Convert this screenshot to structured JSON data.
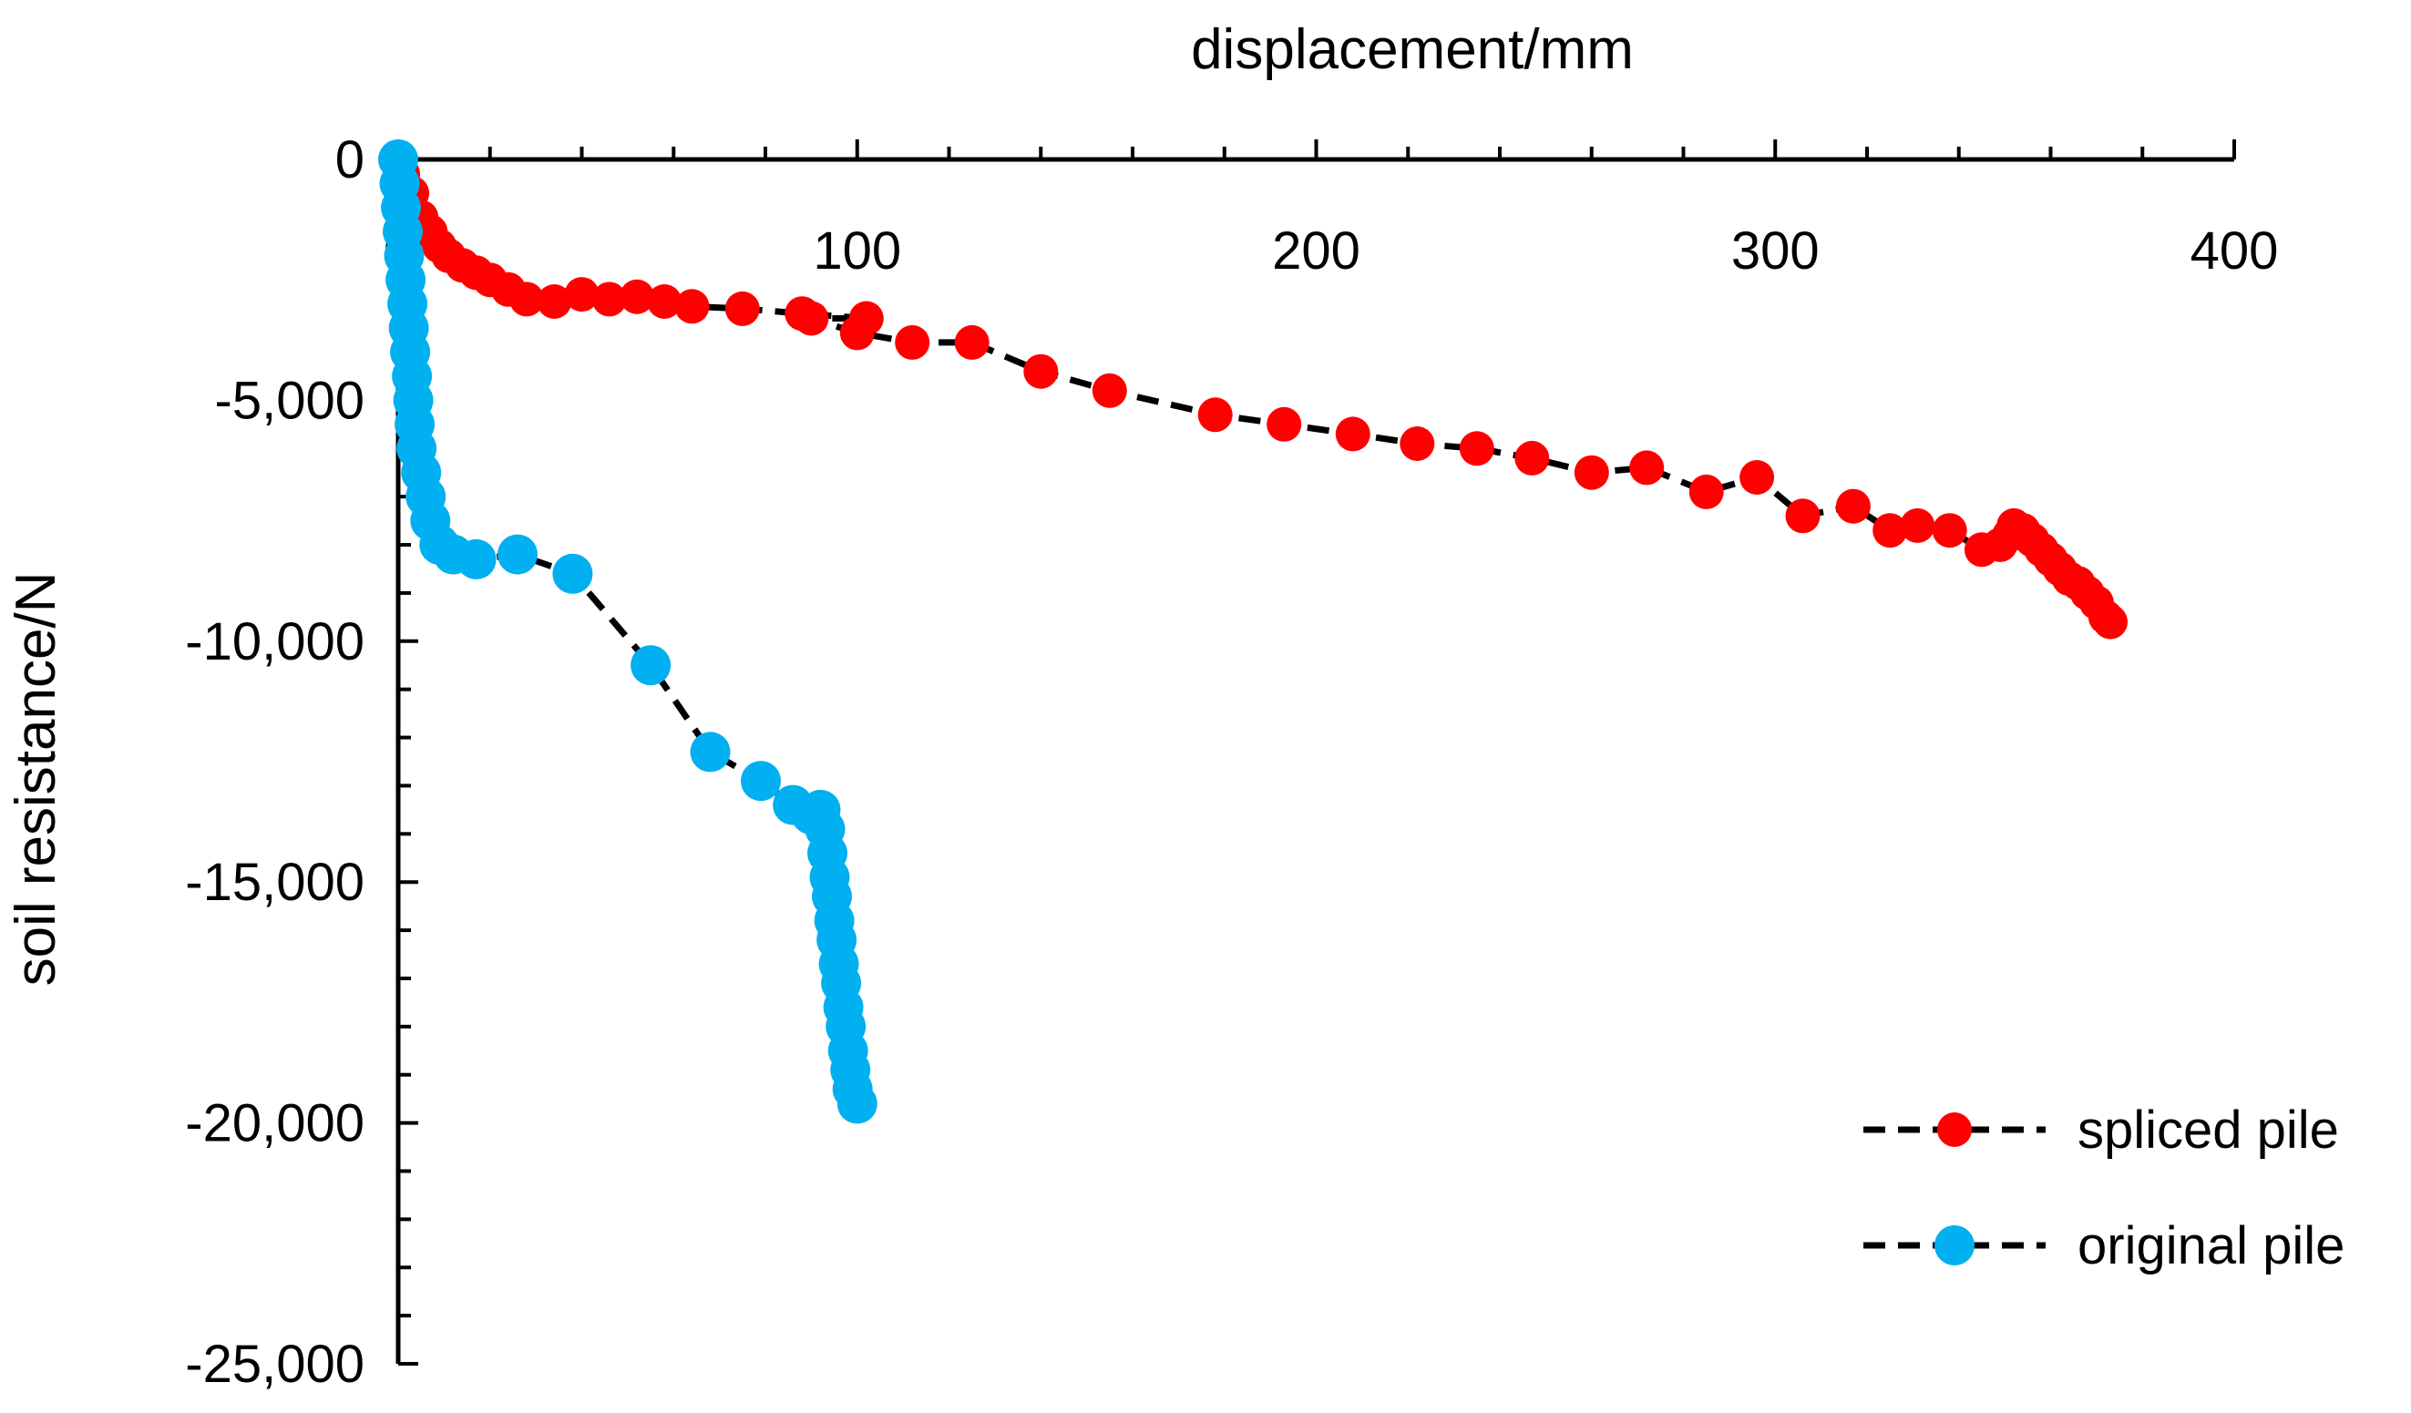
{
  "chart_data": {
    "type": "scatter",
    "title": "",
    "xlabel": "displacement/mm",
    "ylabel": "soil resistance/N",
    "xlim": [
      0,
      400
    ],
    "ylim": [
      -25000,
      0
    ],
    "x_ticks": [
      0,
      100,
      200,
      300,
      400
    ],
    "x_tick_labels": [
      "0",
      "100",
      "200",
      "300",
      "400"
    ],
    "y_ticks": [
      0,
      -5000,
      -10000,
      -15000,
      -20000,
      -25000
    ],
    "y_tick_labels": [
      "0",
      "-5,000",
      "-10,000",
      "-15,000",
      "-20,000",
      "-25,000"
    ],
    "legend_position": "bottom-right",
    "series": [
      {
        "name": "spliced pile",
        "color": "#ff0000",
        "line_color": "#000000",
        "line_style": "dashed",
        "points": [
          [
            0,
            0
          ],
          [
            1,
            -300
          ],
          [
            3,
            -700
          ],
          [
            5,
            -1200
          ],
          [
            7,
            -1500
          ],
          [
            9,
            -1800
          ],
          [
            11,
            -2000
          ],
          [
            14,
            -2200
          ],
          [
            17,
            -2350
          ],
          [
            20,
            -2500
          ],
          [
            24,
            -2700
          ],
          [
            28,
            -2900
          ],
          [
            34,
            -2950
          ],
          [
            40,
            -2800
          ],
          [
            46,
            -2900
          ],
          [
            52,
            -2850
          ],
          [
            58,
            -2950
          ],
          [
            64,
            -3050
          ],
          [
            75,
            -3100
          ],
          [
            88,
            -3200
          ],
          [
            102,
            -3300
          ],
          [
            90,
            -3300
          ],
          [
            100,
            -3600
          ],
          [
            112,
            -3800
          ],
          [
            125,
            -3800
          ],
          [
            140,
            -4400
          ],
          [
            155,
            -4800
          ],
          [
            178,
            -5300
          ],
          [
            193,
            -5500
          ],
          [
            208,
            -5700
          ],
          [
            222,
            -5900
          ],
          [
            235,
            -6000
          ],
          [
            247,
            -6200
          ],
          [
            260,
            -6500
          ],
          [
            272,
            -6400
          ],
          [
            285,
            -6900
          ],
          [
            296,
            -6600
          ],
          [
            306,
            -7400
          ],
          [
            317,
            -7200
          ],
          [
            325,
            -7700
          ],
          [
            331,
            -7600
          ],
          [
            338,
            -7700
          ],
          [
            345,
            -8100
          ],
          [
            349,
            -8000
          ],
          [
            351,
            -7800
          ],
          [
            352,
            -7600
          ],
          [
            354,
            -7700
          ],
          [
            356,
            -7900
          ],
          [
            358,
            -8100
          ],
          [
            360,
            -8300
          ],
          [
            362,
            -8500
          ],
          [
            364,
            -8700
          ],
          [
            366,
            -8800
          ],
          [
            368,
            -9000
          ],
          [
            370,
            -9200
          ],
          [
            372,
            -9500
          ],
          [
            373,
            -9600
          ]
        ]
      },
      {
        "name": "original pile",
        "color": "#00b0f0",
        "line_color": "#000000",
        "line_style": "dashed",
        "points": [
          [
            0,
            0
          ],
          [
            0.3,
            -500
          ],
          [
            0.6,
            -1000
          ],
          [
            1,
            -1500
          ],
          [
            1.3,
            -2000
          ],
          [
            1.6,
            -2500
          ],
          [
            2,
            -3000
          ],
          [
            2.3,
            -3500
          ],
          [
            2.6,
            -4000
          ],
          [
            3,
            -4500
          ],
          [
            3.3,
            -5000
          ],
          [
            3.6,
            -5500
          ],
          [
            4,
            -6000
          ],
          [
            5,
            -6500
          ],
          [
            6,
            -7000
          ],
          [
            7,
            -7500
          ],
          [
            9,
            -8000
          ],
          [
            12,
            -8200
          ],
          [
            17,
            -8300
          ],
          [
            26,
            -8200
          ],
          [
            38,
            -8600
          ],
          [
            55,
            -10500
          ],
          [
            68,
            -12300
          ],
          [
            79,
            -12900
          ],
          [
            86,
            -13400
          ],
          [
            90,
            -13600
          ],
          [
            92,
            -13500
          ],
          [
            93,
            -13900
          ],
          [
            93.5,
            -14400
          ],
          [
            94,
            -14900
          ],
          [
            94.5,
            -15300
          ],
          [
            95,
            -15800
          ],
          [
            95.5,
            -16200
          ],
          [
            96,
            -16700
          ],
          [
            96.5,
            -17100
          ],
          [
            97,
            -17600
          ],
          [
            97.5,
            -18000
          ],
          [
            98,
            -18500
          ],
          [
            98.5,
            -18900
          ],
          [
            99,
            -19300
          ],
          [
            100,
            -19600
          ]
        ]
      }
    ]
  }
}
